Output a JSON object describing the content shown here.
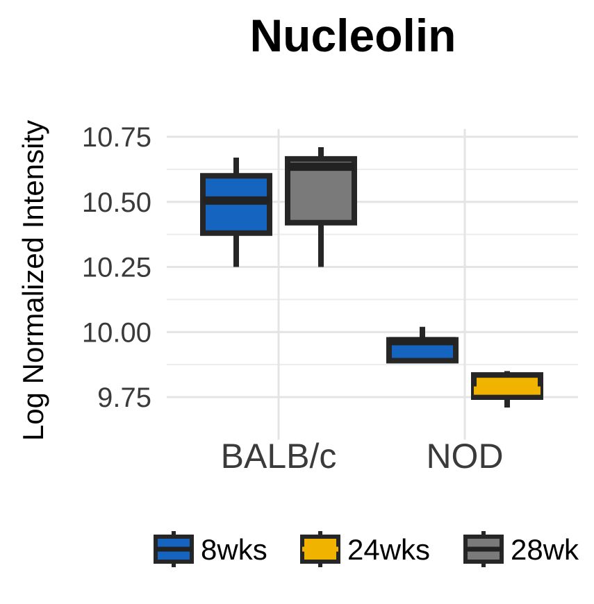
{
  "chart_data": {
    "type": "box",
    "title": "Nucleolin",
    "xlabel": "",
    "ylabel": "Log Normalized Intensity",
    "ylim": [
      9.68,
      10.78
    ],
    "yticks": [
      9.75,
      10.0,
      10.25,
      10.5,
      10.75
    ],
    "ytick_labels": [
      "9.75",
      "10.00",
      "10.25",
      "10.50",
      "10.75"
    ],
    "categories": [
      "BALB/c",
      "NOD"
    ],
    "grid": true,
    "legend_position": "bottom",
    "series": [
      {
        "name": "8wks",
        "color": "#1565c0",
        "median_color": "#222222"
      },
      {
        "name": "24wks",
        "color": "#f0b400",
        "median_color": "#f0b400"
      },
      {
        "name": "28wk",
        "color": "#7a7a7a",
        "median_color": "#222222"
      }
    ],
    "boxes": [
      {
        "category": "BALB/c",
        "series": "8wks",
        "slot": 0,
        "whisker_low": 10.25,
        "q1": 10.38,
        "median": 10.505,
        "q3": 10.6,
        "whisker_high": 10.67
      },
      {
        "category": "BALB/c",
        "series": "28wk",
        "slot": 1,
        "whisker_low": 10.25,
        "q1": 10.42,
        "median": 10.635,
        "q3": 10.665,
        "whisker_high": 10.71
      },
      {
        "category": "NOD",
        "series": "8wks",
        "slot": 0,
        "whisker_low": 9.885,
        "q1": 9.89,
        "median": 9.965,
        "q3": 9.97,
        "whisker_high": 10.02
      },
      {
        "category": "NOD",
        "series": "24wks",
        "slot": 1,
        "whisker_low": 9.71,
        "q1": 9.75,
        "median": 9.775,
        "q3": 9.835,
        "whisker_high": 9.85
      }
    ]
  }
}
